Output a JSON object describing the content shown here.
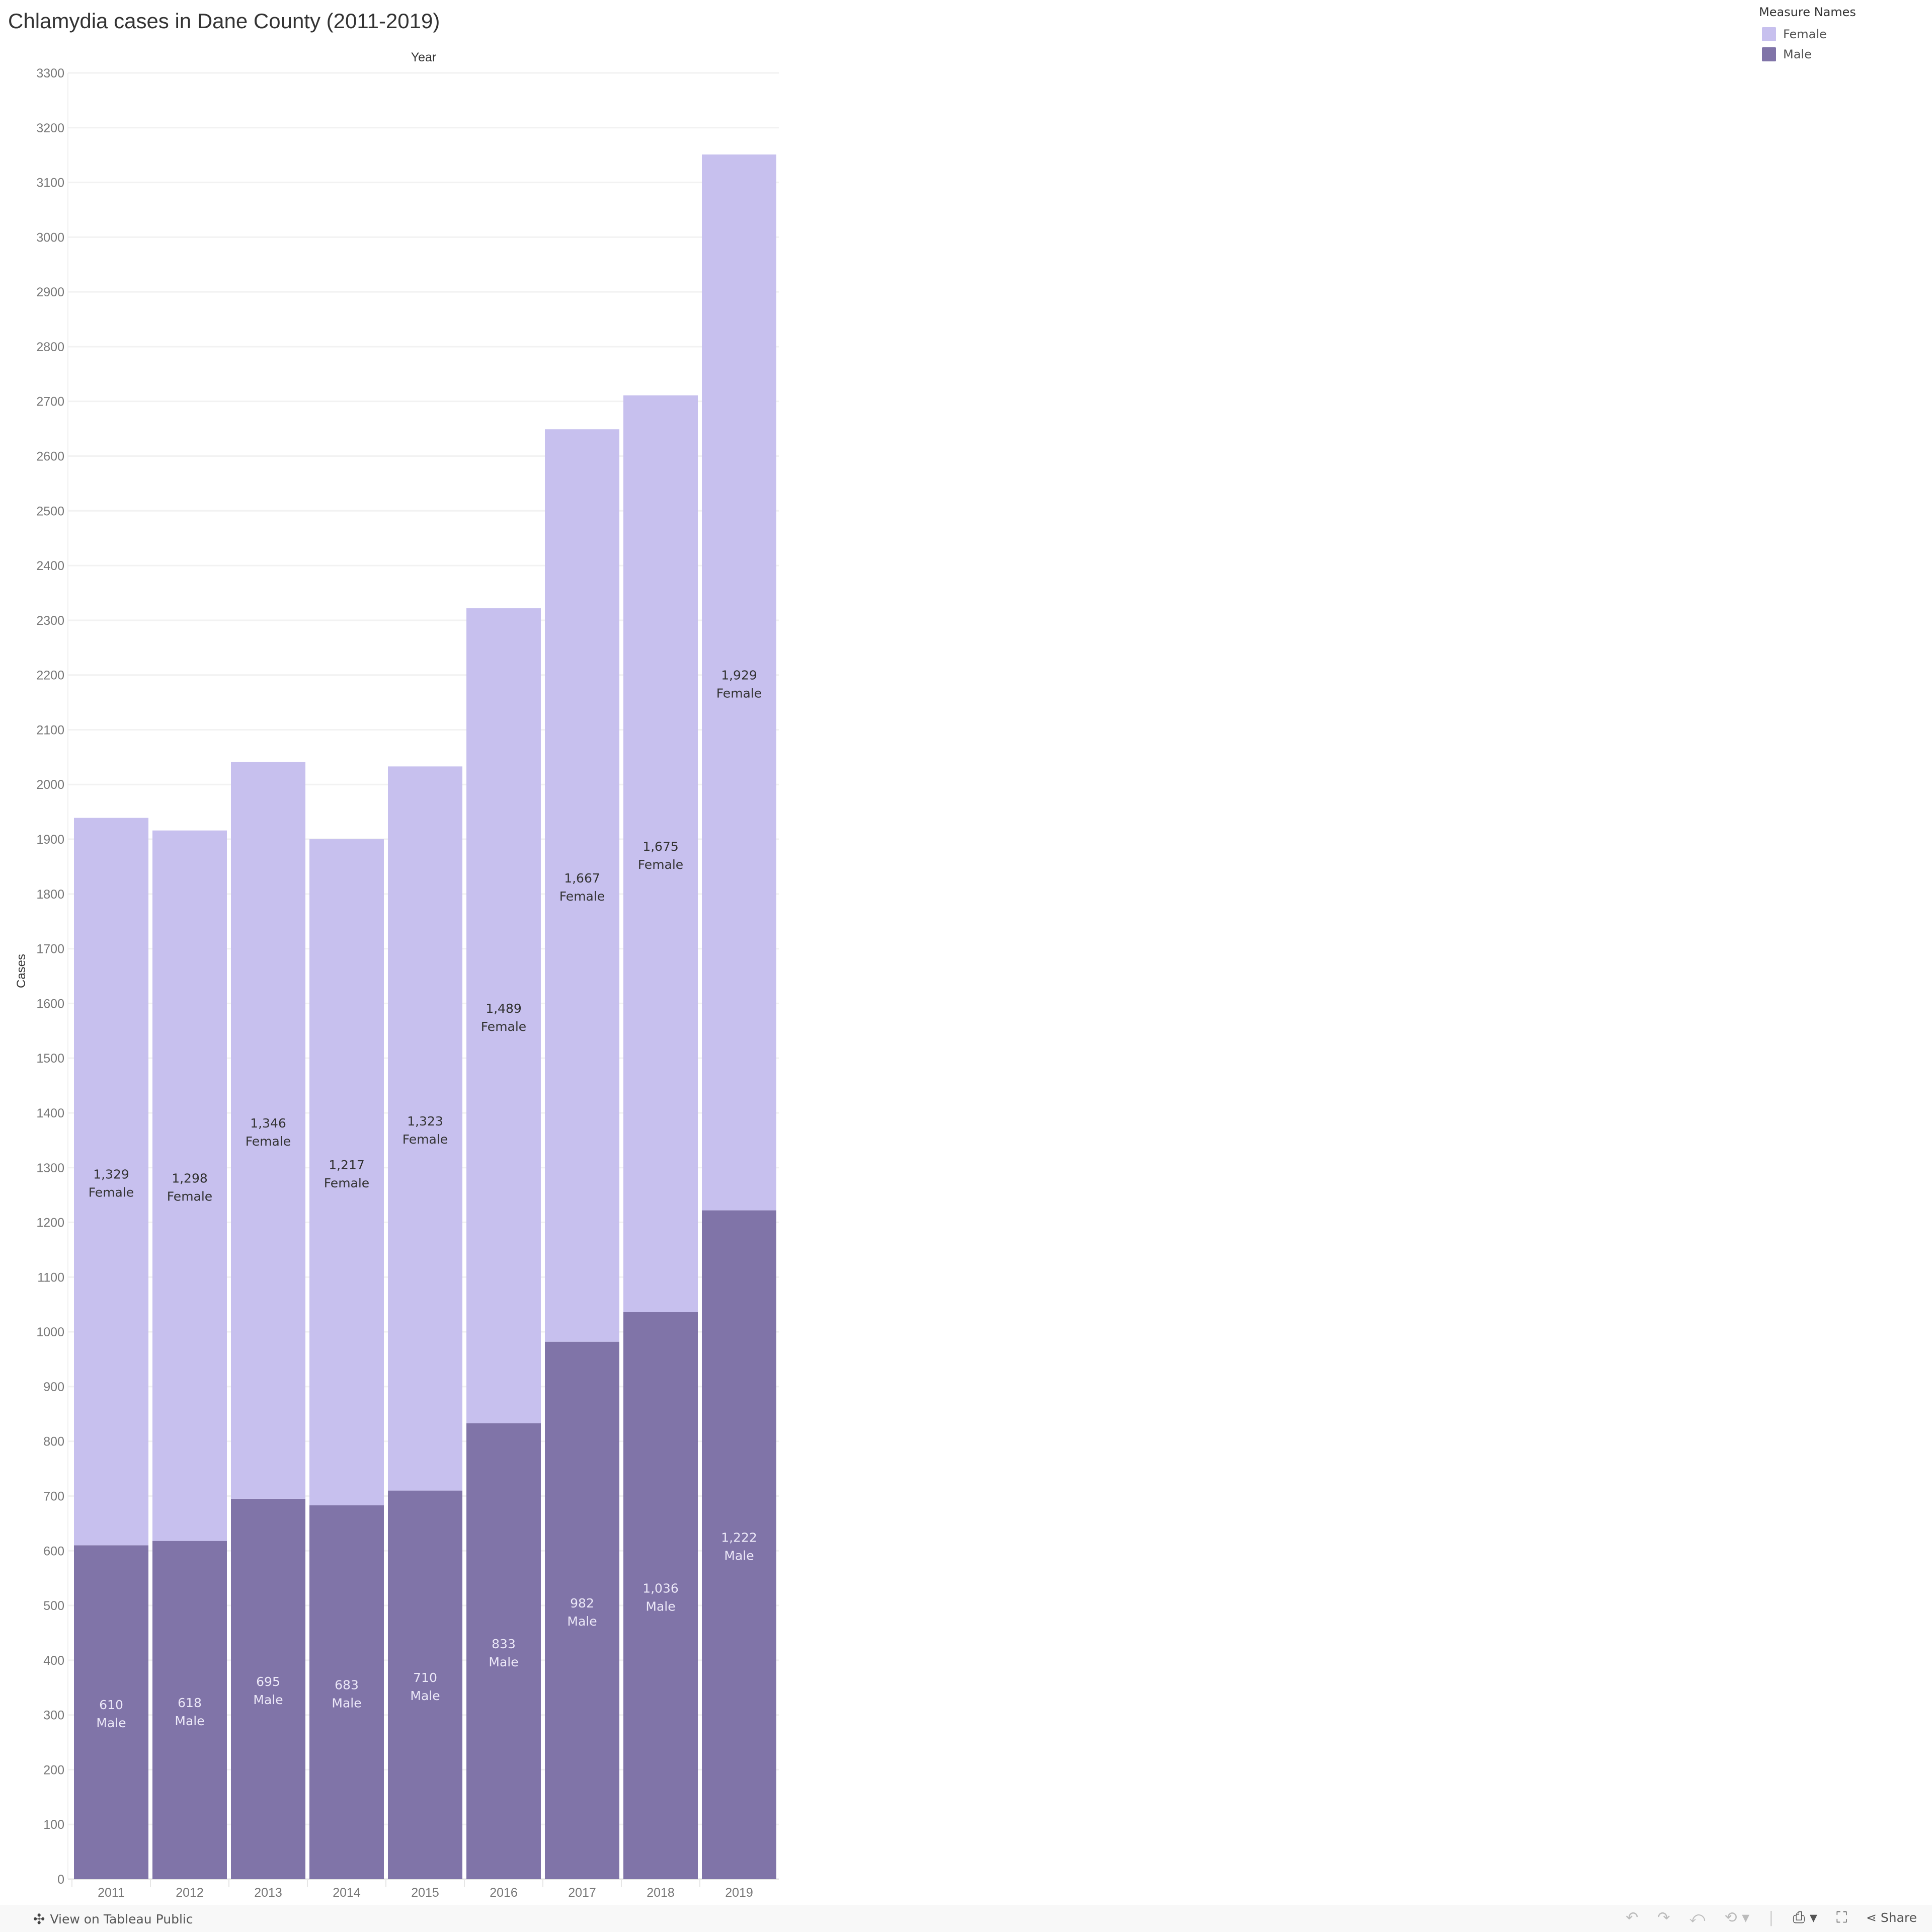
{
  "chart_data": {
    "type": "bar",
    "stacked": true,
    "title": "Chlamydia cases in Dane County (2011-2019)",
    "xlabel": "Year",
    "ylabel": "Cases",
    "ylim": [
      0,
      3300
    ],
    "yticks": [
      0,
      100,
      200,
      300,
      400,
      500,
      600,
      700,
      800,
      900,
      1000,
      1100,
      1200,
      1300,
      1400,
      1500,
      1600,
      1700,
      1800,
      1900,
      2000,
      2100,
      2200,
      2300,
      2400,
      2500,
      2600,
      2700,
      2800,
      2900,
      3000,
      3100,
      3200,
      3300
    ],
    "grid": true,
    "categories": [
      "2011",
      "2012",
      "2013",
      "2014",
      "2015",
      "2016",
      "2017",
      "2018",
      "2019"
    ],
    "series": [
      {
        "name": "Male",
        "color": "#8074a8",
        "label_color": "#ece8f8",
        "values": [
          610,
          618,
          695,
          683,
          710,
          833,
          982,
          1036,
          1222
        ],
        "labels": [
          "610",
          "618",
          "695",
          "683",
          "710",
          "833",
          "982",
          "1,036",
          "1,222"
        ]
      },
      {
        "name": "Female",
        "color": "#c7c0ee",
        "label_color": "#333333",
        "values": [
          1329,
          1298,
          1346,
          1217,
          1323,
          1489,
          1667,
          1675,
          1929
        ],
        "labels": [
          "1,329",
          "1,298",
          "1,346",
          "1,217",
          "1,323",
          "1,489",
          "1,667",
          "1,675",
          "1,929"
        ]
      }
    ],
    "legend": {
      "title": "Measure Names",
      "placement": "top-right",
      "items": [
        "Female",
        "Male"
      ]
    }
  },
  "footer": {
    "view_label": "View on Tableau Public",
    "share_label": "Share",
    "icons": [
      "tableau-logo-icon",
      "undo-icon",
      "redo-icon",
      "revert-icon",
      "refresh-icon",
      "download-icon",
      "fullscreen-icon",
      "share-icon"
    ]
  }
}
